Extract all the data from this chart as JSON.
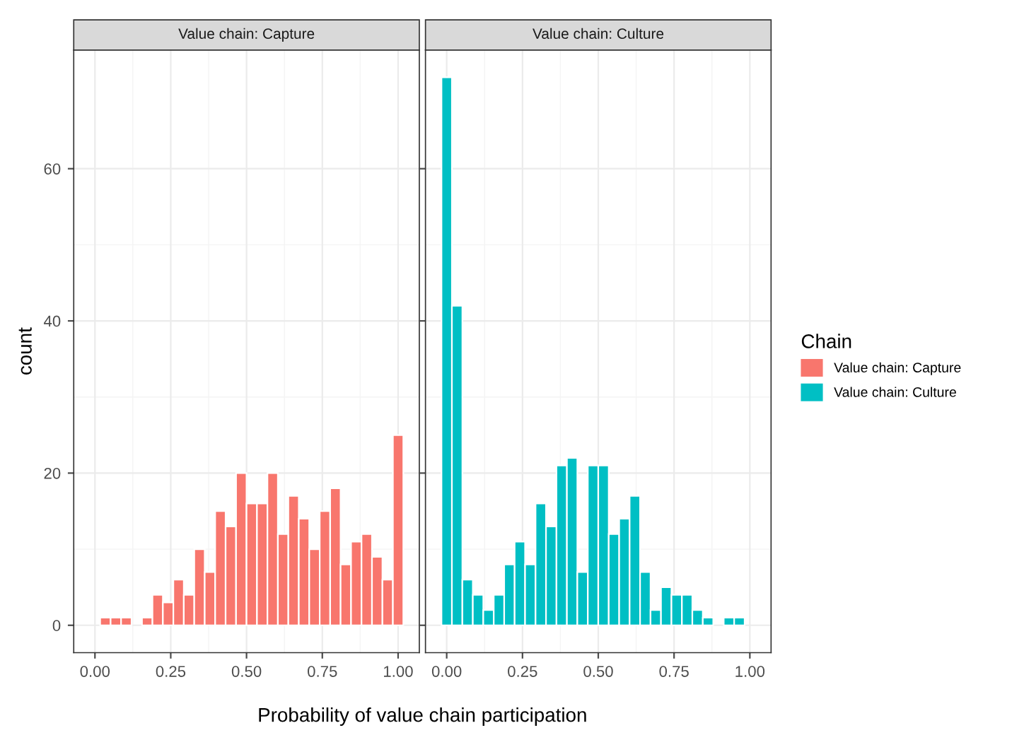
{
  "chart_data": [
    {
      "type": "histogram",
      "title": "Value chain: Capture",
      "xlabel": "Probability of value chain participation",
      "ylabel": "count",
      "bins": [
        0.0172,
        0.0517,
        0.0862,
        0.1207,
        0.1552,
        0.1897,
        0.2241,
        0.2586,
        0.2931,
        0.3276,
        0.3621,
        0.3966,
        0.431,
        0.4655,
        0.5,
        0.5345,
        0.569,
        0.6034,
        0.6379,
        0.6724,
        0.7069,
        0.7414,
        0.7759,
        0.8103,
        0.8448,
        0.8793,
        0.9138,
        0.9483,
        0.9828,
        1.0172
      ],
      "series": [
        {
          "name": "Value chain: Capture",
          "color": "#f8766d",
          "values": [
            1,
            1,
            1,
            0,
            1,
            4,
            3,
            6,
            4,
            10,
            7,
            15,
            13,
            20,
            16,
            16,
            20,
            12,
            17,
            14,
            10,
            15,
            18,
            8,
            11,
            12,
            9,
            6,
            25
          ]
        }
      ],
      "xlim": [
        -0.07,
        1.07
      ],
      "xticks": [
        {
          "value": 0,
          "label": "0.00"
        },
        {
          "value": 0.25,
          "label": "0.25"
        },
        {
          "value": 0.5,
          "label": "0.50"
        },
        {
          "value": 0.75,
          "label": "0.75"
        },
        {
          "value": 1,
          "label": "1.00"
        }
      ],
      "ylim": [
        -3.6,
        75.6
      ],
      "yticks": [
        0,
        20,
        40,
        60
      ],
      "grid": true,
      "legend": "right"
    },
    {
      "type": "histogram",
      "title": "Value chain: Culture",
      "legend_title": "Chain",
      "bins": [
        -0.0172,
        0.0172,
        0.0517,
        0.0862,
        0.1207,
        0.1552,
        0.1897,
        0.2241,
        0.2586,
        0.2931,
        0.3276,
        0.3621,
        0.3966,
        0.431,
        0.4655,
        0.5,
        0.5345,
        0.569,
        0.6034,
        0.6379,
        0.6724,
        0.7069,
        0.7414,
        0.7759,
        0.8103,
        0.8448,
        0.8793,
        0.9138,
        0.9483,
        0.9828
      ],
      "series": [
        {
          "name": "Value chain: Culture",
          "color": "#00bfc4",
          "values": [
            72,
            42,
            6,
            4,
            2,
            4,
            8,
            11,
            8,
            16,
            13,
            21,
            22,
            7,
            21,
            21,
            12,
            14,
            17,
            7,
            2,
            5,
            4,
            4,
            2,
            1,
            0,
            1,
            1
          ]
        }
      ],
      "xlim": [
        -0.07,
        1.07
      ],
      "xticks": [
        {
          "value": 0,
          "label": "0.00"
        },
        {
          "value": 0.25,
          "label": "0.25"
        },
        {
          "value": 0.5,
          "label": "0.50"
        },
        {
          "value": 0.75,
          "label": "0.75"
        },
        {
          "value": 1,
          "label": "1.00"
        }
      ],
      "ylim": [
        -3.6,
        75.6
      ],
      "yticks": [
        0,
        20,
        40,
        60
      ],
      "tick_labels": "x",
      "grid": true,
      "legend": "right"
    }
  ]
}
